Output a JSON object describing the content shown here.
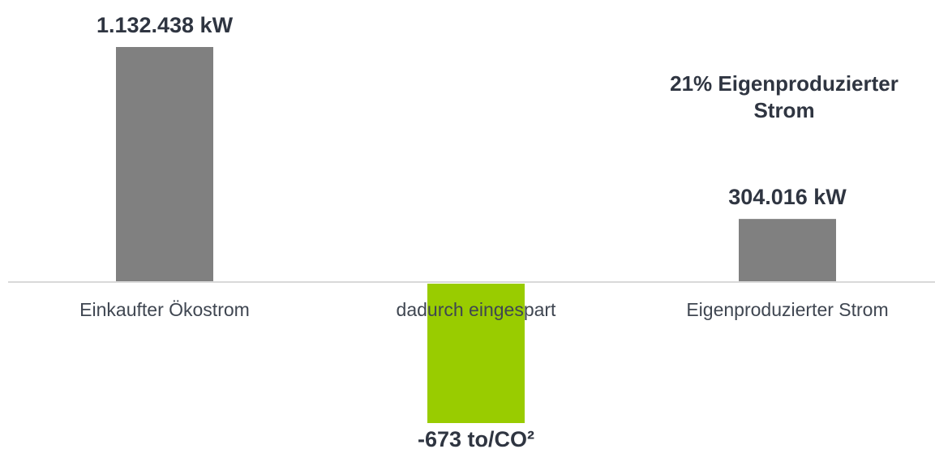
{
  "chart_data": {
    "type": "bar",
    "categories": [
      "Einkaufter Ökostrom",
      "dadurch eingespart",
      "Eigenproduzierter Strom"
    ],
    "values": [
      1132438,
      -673,
      304016
    ],
    "data_labels": [
      "1.132.438 kW",
      "-673 to/CO²",
      "304.016 kW"
    ],
    "bar_colors": [
      "#808080",
      "#99cc00",
      "#808080"
    ],
    "axis_color": "#d9d9d9",
    "annotation_lines": [
      "21% Eigenproduzierter",
      "Strom"
    ],
    "grid": false
  }
}
